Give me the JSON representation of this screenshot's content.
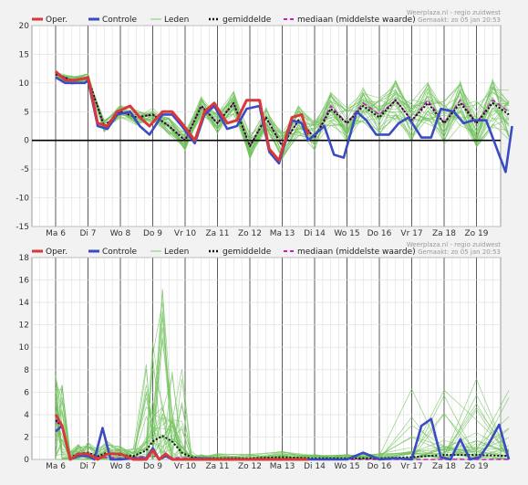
{
  "source": {
    "site": "Weerplaza.nl - regio zuidwest",
    "made": "Gemaakt: zo 05 jan 20:53"
  },
  "legend": [
    {
      "key": "oper",
      "label": "Oper.",
      "color": "#d93838",
      "style": "thick"
    },
    {
      "key": "controle",
      "label": "Controle",
      "color": "#3a4bc4",
      "style": "thick"
    },
    {
      "key": "leden",
      "label": "Leden",
      "color": "#7fcc6a",
      "style": "thin"
    },
    {
      "key": "gemiddelde",
      "label": "gemiddelde",
      "color": "#111111",
      "style": "dotted"
    },
    {
      "key": "mediaan",
      "label": "mediaan (middelste waarde)",
      "color": "#c020c0",
      "style": "dashed"
    }
  ],
  "chart_data": [
    {
      "type": "line",
      "x_labels": [
        "Ma 6",
        "Di 7",
        "Wo 8",
        "Do 9",
        "Vr 10",
        "Za 11",
        "Zo 12",
        "Ma 13",
        "Di 14",
        "Wo 15",
        "Do 16",
        "Vr 17",
        "Za 18",
        "Zo 19"
      ],
      "x_range": [
        0,
        14.1
      ],
      "ylim": [
        -15,
        20
      ],
      "y_ticks": [
        -15,
        -10,
        -5,
        0,
        5,
        10,
        15,
        20
      ],
      "zero_line": true,
      "grid": true,
      "legend_position": "top-left",
      "series": [
        {
          "name": "Oper.",
          "x": [
            0,
            0.3,
            0.6,
            0.9,
            1.0,
            1.3,
            1.6,
            1.9,
            2.3,
            2.6,
            2.9,
            3.3,
            3.6,
            3.9,
            4.3,
            4.6,
            4.9,
            5.3,
            5.6,
            5.9,
            6.3,
            6.6,
            6.9,
            7.3,
            7.6,
            7.8
          ],
          "values": [
            12,
            10.5,
            10.5,
            10.8,
            11,
            3,
            2.5,
            5,
            6,
            4,
            2.5,
            5,
            5,
            3,
            0,
            5,
            6.5,
            3,
            3.5,
            7,
            7,
            -1.5,
            -3.5,
            4,
            4.5,
            1
          ]
        },
        {
          "name": "Controle",
          "x": [
            0,
            0.3,
            0.6,
            0.9,
            1.0,
            1.3,
            1.6,
            1.9,
            2.3,
            2.6,
            2.9,
            3.3,
            3.6,
            3.9,
            4.3,
            4.6,
            4.9,
            5.3,
            5.6,
            5.9,
            6.3,
            6.6,
            6.9,
            7.3,
            7.6,
            7.8,
            8.3,
            8.6,
            8.9,
            9.3,
            9.6,
            9.9,
            10.3,
            10.6,
            10.9,
            11.3,
            11.6,
            11.9,
            12.3,
            12.6,
            12.9,
            13.3,
            13.6,
            13.9,
            14.1
          ],
          "values": [
            11,
            10,
            10,
            10,
            10.5,
            2.5,
            2,
            4.5,
            5,
            2.5,
            1,
            4.5,
            4.5,
            2.5,
            -0.5,
            4.5,
            6,
            2,
            2.5,
            5.5,
            6,
            -2,
            -4,
            3.5,
            3,
            0,
            2.5,
            -2.5,
            -3,
            5,
            3.5,
            1,
            1,
            3,
            4,
            0.5,
            0.5,
            5.5,
            5,
            3,
            3.5,
            3.5,
            -1,
            -5.5,
            2.5
          ]
        },
        {
          "name": "gemiddelde",
          "x": [
            0,
            0.5,
            1.0,
            1.5,
            2.0,
            2.5,
            3.0,
            3.5,
            4.0,
            4.5,
            5.0,
            5.5,
            6.0,
            6.5,
            7.0,
            7.5,
            8.0,
            8.5,
            9.0,
            9.5,
            10.0,
            10.5,
            11.0,
            11.5,
            12.0,
            12.5,
            13.0,
            13.5,
            14.0
          ],
          "values": [
            11.5,
            10.5,
            10.8,
            2.5,
            5,
            4,
            4.5,
            2.5,
            0,
            6,
            3,
            6.5,
            -1,
            4,
            -1,
            3.5,
            0.5,
            5.5,
            3,
            6,
            4,
            7,
            3.5,
            6.5,
            3,
            6.5,
            3,
            6.5,
            4.5
          ]
        },
        {
          "name": "mediaan (middelste waarde)",
          "x": [
            0,
            0.5,
            1.0,
            1.5,
            2.0,
            2.5,
            3.0,
            3.5,
            4.0,
            4.5,
            5.0,
            5.5,
            6.0,
            6.5,
            7.0,
            7.5,
            8.0,
            8.5,
            9.0,
            9.5,
            10.0,
            10.5,
            11.0,
            11.5,
            12.0,
            12.5,
            13.0,
            13.5,
            14.0
          ],
          "values": [
            11.5,
            10.5,
            10.8,
            2.5,
            5,
            4,
            4.5,
            2.5,
            0,
            6,
            3,
            6.5,
            -1,
            4,
            -1,
            3.5,
            0.5,
            6,
            3,
            6.5,
            4.5,
            7,
            3.5,
            7,
            3,
            7,
            3,
            7,
            5
          ]
        }
      ]
    },
    {
      "type": "line",
      "x_labels": [
        "Ma 6",
        "Di 7",
        "Wo 8",
        "Do 9",
        "Vr 10",
        "Za 11",
        "Zo 12",
        "Ma 13",
        "Di 14",
        "Wo 15",
        "Do 16",
        "Vr 17",
        "Za 18",
        "Zo 19"
      ],
      "x_range": [
        0,
        14.1
      ],
      "ylim": [
        0,
        18
      ],
      "y_ticks": [
        0,
        2,
        4,
        6,
        8,
        10,
        12,
        14,
        16,
        18
      ],
      "grid": true,
      "legend_position": "top-left",
      "series": [
        {
          "name": "Oper.",
          "x": [
            0,
            0.2,
            0.45,
            0.7,
            1.0,
            1.3,
            1.6,
            2.0,
            2.4,
            2.8,
            3.0,
            3.2,
            3.4,
            3.6,
            3.9,
            4.3,
            5.0,
            6.0,
            7.0,
            7.8
          ],
          "values": [
            4,
            3,
            0,
            0.5,
            0.5,
            0,
            0.5,
            0.5,
            0,
            0,
            0.8,
            0,
            0.5,
            0,
            0,
            0,
            0,
            0,
            0,
            0
          ]
        },
        {
          "name": "Controle",
          "x": [
            0,
            0.2,
            0.45,
            0.7,
            1.0,
            1.2,
            1.45,
            1.7,
            2.0,
            2.4,
            2.8,
            3.0,
            3.2,
            3.4,
            3.6,
            3.9,
            4.5,
            5.0,
            6.0,
            7.0,
            8.0,
            9.0,
            9.5,
            10.0,
            10.5,
            11.0,
            11.3,
            11.6,
            11.9,
            12.2,
            12.5,
            12.8,
            13.1,
            13.4,
            13.7,
            14.0
          ],
          "values": [
            2.5,
            3,
            0,
            0.3,
            0.3,
            0,
            2.8,
            0,
            0,
            0.1,
            0.1,
            1,
            0,
            0.3,
            0,
            0,
            0.1,
            0,
            0,
            0,
            0,
            0,
            0.6,
            0,
            0.1,
            0,
            3,
            3.6,
            0.2,
            0,
            1.8,
            0,
            0.2,
            1.5,
            3.1,
            0
          ]
        },
        {
          "name": "gemiddelde",
          "x": [
            0,
            0.2,
            0.45,
            0.7,
            1.0,
            1.3,
            1.6,
            2.0,
            2.4,
            2.8,
            3.0,
            3.3,
            3.6,
            3.9,
            4.2,
            4.5,
            5.0,
            6.0,
            7.0,
            8.0,
            9.0,
            10.0,
            11.0,
            12.0,
            13.0,
            14.0
          ],
          "values": [
            3.5,
            3,
            0.2,
            0.5,
            0.6,
            0.3,
            0.6,
            0.4,
            0.3,
            0.8,
            1.6,
            2.1,
            1.6,
            0.6,
            0.2,
            0.1,
            0.1,
            0.1,
            0.2,
            0.1,
            0.1,
            0.1,
            0.2,
            0.4,
            0.4,
            0.3
          ]
        },
        {
          "name": "mediaan (middelste waarde)",
          "x": [
            0,
            0.2,
            0.45,
            0.7,
            1.0,
            2.0,
            3.0,
            4.0,
            5.0,
            6.0,
            7.0,
            8.0,
            9.0,
            10.0,
            11.0,
            12.0,
            13.0,
            14.0
          ],
          "values": [
            3.5,
            2.8,
            0.2,
            0.3,
            0.3,
            0.1,
            0.3,
            0.1,
            0,
            0,
            0,
            0,
            0,
            0,
            0,
            0,
            0,
            0
          ]
        }
      ]
    }
  ]
}
